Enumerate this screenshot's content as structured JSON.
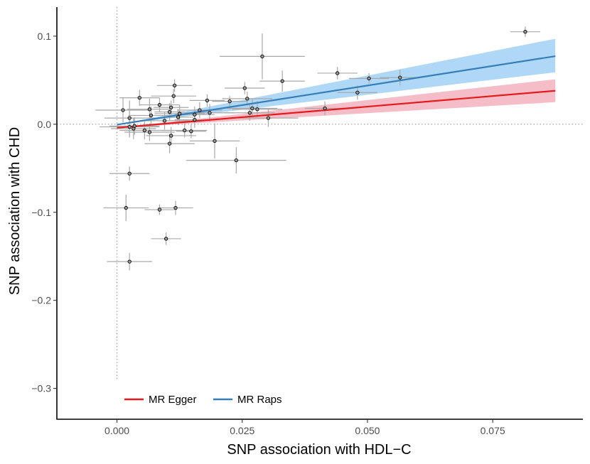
{
  "chart_data": {
    "type": "scatter",
    "title": "",
    "xlabel": "SNP association with HDL−C",
    "ylabel": "SNP association with CHD",
    "xlim": [
      -0.012,
      0.093
    ],
    "ylim": [
      -0.335,
      0.133
    ],
    "x_ticks": [
      0,
      0.025,
      0.05,
      0.075
    ],
    "x_tick_labels": [
      "0.000",
      "0.025",
      "0.050",
      "0.075"
    ],
    "y_ticks": [
      0.1,
      0,
      -0.1,
      -0.2,
      -0.3
    ],
    "y_tick_labels": [
      "0.1",
      "0.0",
      "−0.1",
      "−0.2",
      "−0.3"
    ],
    "reference_lines": {
      "x": 0,
      "y": 0
    },
    "points": [
      {
        "x": 0.0815,
        "y": 0.105,
        "xerr": 0.003,
        "yerr": 0.006
      },
      {
        "x": 0.029,
        "y": 0.077,
        "xerr": 0.0085,
        "yerr": 0.026
      },
      {
        "x": 0.044,
        "y": 0.058,
        "xerr": 0.004,
        "yerr": 0.007
      },
      {
        "x": 0.033,
        "y": 0.049,
        "xerr": 0.0045,
        "yerr": 0.012
      },
      {
        "x": 0.0565,
        "y": 0.053,
        "xerr": 0.004,
        "yerr": 0.009
      },
      {
        "x": 0.0503,
        "y": 0.052,
        "xerr": 0.004,
        "yerr": 0.006
      },
      {
        "x": 0.048,
        "y": 0.036,
        "xerr": 0.004,
        "yerr": 0.008
      },
      {
        "x": 0.0415,
        "y": 0.018,
        "xerr": 0.004,
        "yerr": 0.008
      },
      {
        "x": 0.0115,
        "y": 0.044,
        "xerr": 0.0035,
        "yerr": 0.007
      },
      {
        "x": 0.0045,
        "y": 0.03,
        "xerr": 0.004,
        "yerr": 0.009
      },
      {
        "x": 0.0113,
        "y": 0.032,
        "xerr": 0.0045,
        "yerr": 0.008
      },
      {
        "x": 0.0255,
        "y": 0.041,
        "xerr": 0.004,
        "yerr": 0.007
      },
      {
        "x": 0.026,
        "y": 0.029,
        "xerr": 0.005,
        "yerr": 0.008
      },
      {
        "x": 0.0225,
        "y": 0.026,
        "xerr": 0.0035,
        "yerr": 0.006
      },
      {
        "x": 0.018,
        "y": 0.027,
        "xerr": 0.0035,
        "yerr": 0.007
      },
      {
        "x": 0.0085,
        "y": 0.022,
        "xerr": 0.004,
        "yerr": 0.008
      },
      {
        "x": 0.0012,
        "y": 0.016,
        "xerr": 0.0055,
        "yerr": 0.014
      },
      {
        "x": 0.0065,
        "y": 0.017,
        "xerr": 0.0045,
        "yerr": 0.012
      },
      {
        "x": 0.0105,
        "y": 0.014,
        "xerr": 0.003,
        "yerr": 0.01
      },
      {
        "x": 0.0108,
        "y": 0.019,
        "xerr": 0.0035,
        "yerr": 0.008
      },
      {
        "x": 0.0125,
        "y": 0.012,
        "xerr": 0.005,
        "yerr": 0.01
      },
      {
        "x": 0.0165,
        "y": 0.016,
        "xerr": 0.0045,
        "yerr": 0.009
      },
      {
        "x": 0.0155,
        "y": 0.011,
        "xerr": 0.004,
        "yerr": 0.009
      },
      {
        "x": 0.0185,
        "y": 0.013,
        "xerr": 0.005,
        "yerr": 0.01
      },
      {
        "x": 0.027,
        "y": 0.018,
        "xerr": 0.005,
        "yerr": 0.01
      },
      {
        "x": 0.028,
        "y": 0.017,
        "xerr": 0.005,
        "yerr": 0.009
      },
      {
        "x": 0.0265,
        "y": 0.013,
        "xerr": 0.005,
        "yerr": 0.009
      },
      {
        "x": 0.0302,
        "y": 0.007,
        "xerr": 0.006,
        "yerr": 0.01
      },
      {
        "x": 0.0025,
        "y": 0.007,
        "xerr": 0.005,
        "yerr": 0.02
      },
      {
        "x": 0.0068,
        "y": 0.01,
        "xerr": 0.0045,
        "yerr": 0.01
      },
      {
        "x": 0.0095,
        "y": 0.004,
        "xerr": 0.005,
        "yerr": 0.01
      },
      {
        "x": 0.0122,
        "y": 0.008,
        "xerr": 0.003,
        "yerr": 0.009
      },
      {
        "x": 0.0155,
        "y": 0.005,
        "xerr": 0.004,
        "yerr": 0.009
      },
      {
        "x": 0.0025,
        "y": -0.003,
        "xerr": 0.006,
        "yerr": 0.012
      },
      {
        "x": 0.0033,
        "y": -0.005,
        "xerr": 0.0045,
        "yerr": 0.012
      },
      {
        "x": 0.0055,
        "y": -0.007,
        "xerr": 0.005,
        "yerr": 0.01
      },
      {
        "x": 0.0065,
        "y": -0.009,
        "xerr": 0.005,
        "yerr": 0.01
      },
      {
        "x": 0.0035,
        "y": -0.002,
        "xerr": 0.005,
        "yerr": 0.01
      },
      {
        "x": 0.0135,
        "y": -0.007,
        "xerr": 0.0045,
        "yerr": 0.008
      },
      {
        "x": 0.0148,
        "y": -0.008,
        "xerr": 0.003,
        "yerr": 0.008
      },
      {
        "x": 0.0108,
        "y": -0.013,
        "xerr": 0.005,
        "yerr": 0.01
      },
      {
        "x": 0.0105,
        "y": -0.022,
        "xerr": 0.005,
        "yerr": 0.011
      },
      {
        "x": 0.0195,
        "y": -0.019,
        "xerr": 0.005,
        "yerr": 0.02
      },
      {
        "x": 0.0238,
        "y": -0.041,
        "xerr": 0.01,
        "yerr": 0.015
      },
      {
        "x": 0.0025,
        "y": -0.056,
        "xerr": 0.004,
        "yerr": 0.008
      },
      {
        "x": 0.0018,
        "y": -0.095,
        "xerr": 0.0045,
        "yerr": 0.015
      },
      {
        "x": 0.0085,
        "y": -0.097,
        "xerr": 0.003,
        "yerr": 0.006
      },
      {
        "x": 0.0117,
        "y": -0.095,
        "xerr": 0.0035,
        "yerr": 0.008
      },
      {
        "x": 0.0098,
        "y": -0.13,
        "xerr": 0.003,
        "yerr": 0.007
      },
      {
        "x": 0.0025,
        "y": -0.156,
        "xerr": 0.0045,
        "yerr": 0.01
      }
    ],
    "series": [
      {
        "name": "MR Egger",
        "color": "#e41a1c",
        "fill": "#f4b6c2",
        "intercept": -0.004,
        "slope": 0.48,
        "ci_lower_at_xmax": 0.025,
        "ci_upper_at_xmax": 0.051
      },
      {
        "name": "MR Raps",
        "color": "#377eb8",
        "fill": "#a6d4f5",
        "intercept": -0.0005,
        "slope": 0.889,
        "ci_lower_at_xmax": 0.059,
        "ci_upper_at_xmax": 0.097
      }
    ],
    "x_line_range": [
      0.0,
      0.0875
    ],
    "legend": {
      "position": "bottom-left",
      "entries": [
        "MR Egger",
        "MR Raps"
      ]
    }
  }
}
